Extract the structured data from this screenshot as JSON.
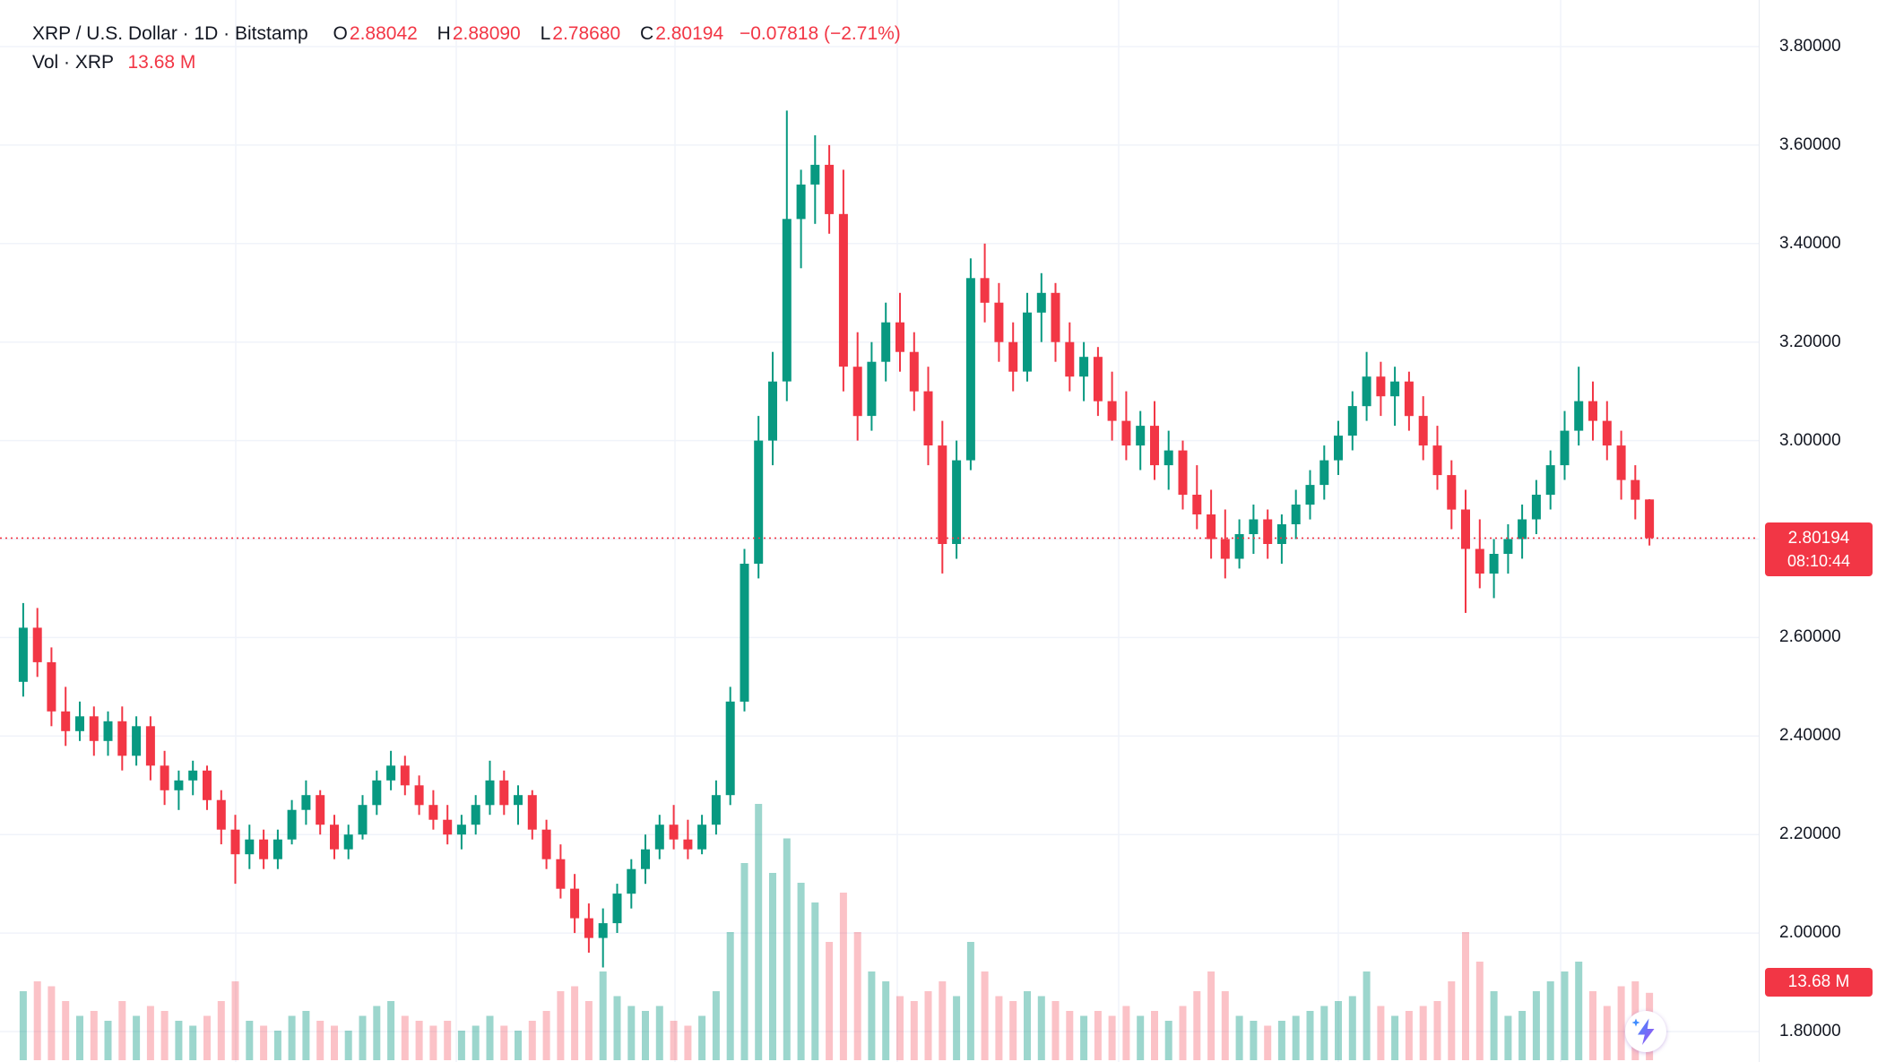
{
  "header": {
    "title": "XRP / U.S. Dollar · 1D · Bitstamp",
    "ohlc": {
      "o_label": "O",
      "o": "2.88042",
      "h_label": "H",
      "h": "2.88090",
      "l_label": "L",
      "l": "2.78680",
      "c_label": "C",
      "c": "2.80194",
      "change": "−0.07818 (−2.71%)"
    },
    "volume": {
      "label": "Vol · XRP",
      "value": "13.68 M"
    }
  },
  "price_axis": {
    "ticks": [
      {
        "label": "3.80000",
        "price": 3.8
      },
      {
        "label": "3.60000",
        "price": 3.6
      },
      {
        "label": "3.40000",
        "price": 3.4
      },
      {
        "label": "3.20000",
        "price": 3.2
      },
      {
        "label": "3.00000",
        "price": 3.0
      },
      {
        "label": "2.60000",
        "price": 2.6
      },
      {
        "label": "2.40000",
        "price": 2.4
      },
      {
        "label": "2.20000",
        "price": 2.2
      },
      {
        "label": "2.00000",
        "price": 2.0
      },
      {
        "label": "1.80000",
        "price": 1.8
      }
    ],
    "current": {
      "label": "2.80194",
      "countdown": "08:10:44"
    },
    "volume_label": "13.68 M"
  },
  "ai_button": {
    "icon": "lightning-bolt"
  },
  "chart_data": {
    "type": "candlestick_with_volume",
    "symbol": "XRP / U.S. Dollar",
    "interval": "1D",
    "exchange": "Bitstamp",
    "ohlc_current": {
      "open": 2.88042,
      "high": 2.8809,
      "low": 2.7868,
      "close": 2.80194,
      "change": -0.07818,
      "change_pct": -2.71
    },
    "current_price": 2.80194,
    "current_volume_m": 13.68,
    "volume_unit": "M",
    "ylim": [
      1.8,
      3.8
    ],
    "gridline_prices": [
      3.8,
      3.6,
      3.4,
      3.2,
      3.0,
      2.8,
      2.6,
      2.4,
      2.2,
      2.0,
      1.8
    ],
    "up_color": "#089981",
    "down_color": "#f23645",
    "vol_up_color": "rgba(8,153,129,0.40)",
    "vol_down_color": "rgba(242,54,69,0.30)",
    "candles_format": [
      "open",
      "high",
      "low",
      "close",
      "volume_millions"
    ],
    "candles": [
      [
        2.51,
        2.67,
        2.48,
        2.62,
        14
      ],
      [
        2.62,
        2.66,
        2.52,
        2.55,
        16
      ],
      [
        2.55,
        2.58,
        2.42,
        2.45,
        15
      ],
      [
        2.45,
        2.5,
        2.38,
        2.41,
        12
      ],
      [
        2.41,
        2.47,
        2.39,
        2.44,
        9
      ],
      [
        2.44,
        2.46,
        2.36,
        2.39,
        10
      ],
      [
        2.39,
        2.45,
        2.36,
        2.43,
        8
      ],
      [
        2.43,
        2.46,
        2.33,
        2.36,
        12
      ],
      [
        2.36,
        2.44,
        2.34,
        2.42,
        9
      ],
      [
        2.42,
        2.44,
        2.31,
        2.34,
        11
      ],
      [
        2.34,
        2.37,
        2.26,
        2.29,
        10
      ],
      [
        2.29,
        2.33,
        2.25,
        2.31,
        8
      ],
      [
        2.31,
        2.35,
        2.28,
        2.33,
        7
      ],
      [
        2.33,
        2.34,
        2.25,
        2.27,
        9
      ],
      [
        2.27,
        2.29,
        2.18,
        2.21,
        12
      ],
      [
        2.21,
        2.24,
        2.1,
        2.16,
        16
      ],
      [
        2.16,
        2.22,
        2.13,
        2.19,
        8
      ],
      [
        2.19,
        2.21,
        2.13,
        2.15,
        7
      ],
      [
        2.15,
        2.21,
        2.13,
        2.19,
        6
      ],
      [
        2.19,
        2.27,
        2.18,
        2.25,
        9
      ],
      [
        2.25,
        2.31,
        2.22,
        2.28,
        10
      ],
      [
        2.28,
        2.29,
        2.2,
        2.22,
        8
      ],
      [
        2.22,
        2.24,
        2.15,
        2.17,
        7
      ],
      [
        2.17,
        2.22,
        2.15,
        2.2,
        6
      ],
      [
        2.2,
        2.28,
        2.19,
        2.26,
        9
      ],
      [
        2.26,
        2.33,
        2.24,
        2.31,
        11
      ],
      [
        2.31,
        2.37,
        2.29,
        2.34,
        12
      ],
      [
        2.34,
        2.36,
        2.28,
        2.3,
        9
      ],
      [
        2.3,
        2.32,
        2.24,
        2.26,
        8
      ],
      [
        2.26,
        2.29,
        2.21,
        2.23,
        7
      ],
      [
        2.23,
        2.26,
        2.18,
        2.2,
        8
      ],
      [
        2.2,
        2.24,
        2.17,
        2.22,
        6
      ],
      [
        2.22,
        2.28,
        2.2,
        2.26,
        7
      ],
      [
        2.26,
        2.35,
        2.24,
        2.31,
        9
      ],
      [
        2.31,
        2.33,
        2.24,
        2.26,
        7
      ],
      [
        2.26,
        2.3,
        2.22,
        2.28,
        6
      ],
      [
        2.28,
        2.29,
        2.19,
        2.21,
        8
      ],
      [
        2.21,
        2.23,
        2.13,
        2.15,
        10
      ],
      [
        2.15,
        2.18,
        2.07,
        2.09,
        14
      ],
      [
        2.09,
        2.12,
        2.0,
        2.03,
        15
      ],
      [
        2.03,
        2.06,
        1.96,
        1.99,
        12
      ],
      [
        1.99,
        2.05,
        1.93,
        2.02,
        18
      ],
      [
        2.02,
        2.1,
        2.0,
        2.08,
        13
      ],
      [
        2.08,
        2.15,
        2.05,
        2.13,
        11
      ],
      [
        2.13,
        2.2,
        2.1,
        2.17,
        10
      ],
      [
        2.17,
        2.24,
        2.15,
        2.22,
        11
      ],
      [
        2.22,
        2.26,
        2.17,
        2.19,
        8
      ],
      [
        2.19,
        2.23,
        2.15,
        2.17,
        7
      ],
      [
        2.17,
        2.24,
        2.16,
        2.22,
        9
      ],
      [
        2.22,
        2.31,
        2.2,
        2.28,
        14
      ],
      [
        2.28,
        2.5,
        2.26,
        2.47,
        26
      ],
      [
        2.47,
        2.78,
        2.45,
        2.75,
        40
      ],
      [
        2.75,
        3.05,
        2.72,
        3.0,
        52
      ],
      [
        3.0,
        3.18,
        2.95,
        3.12,
        38
      ],
      [
        3.12,
        3.67,
        3.08,
        3.45,
        45
      ],
      [
        3.45,
        3.55,
        3.35,
        3.52,
        36
      ],
      [
        3.52,
        3.62,
        3.44,
        3.56,
        32
      ],
      [
        3.56,
        3.6,
        3.42,
        3.46,
        24
      ],
      [
        3.46,
        3.55,
        3.1,
        3.15,
        34
      ],
      [
        3.15,
        3.22,
        3.0,
        3.05,
        26
      ],
      [
        3.05,
        3.2,
        3.02,
        3.16,
        18
      ],
      [
        3.16,
        3.28,
        3.12,
        3.24,
        16
      ],
      [
        3.24,
        3.3,
        3.14,
        3.18,
        13
      ],
      [
        3.18,
        3.22,
        3.06,
        3.1,
        12
      ],
      [
        3.1,
        3.15,
        2.95,
        2.99,
        14
      ],
      [
        2.99,
        3.04,
        2.73,
        2.79,
        16
      ],
      [
        2.79,
        3.0,
        2.76,
        2.96,
        13
      ],
      [
        2.96,
        3.37,
        2.94,
        3.33,
        24
      ],
      [
        3.33,
        3.4,
        3.24,
        3.28,
        18
      ],
      [
        3.28,
        3.32,
        3.16,
        3.2,
        13
      ],
      [
        3.2,
        3.24,
        3.1,
        3.14,
        12
      ],
      [
        3.14,
        3.3,
        3.12,
        3.26,
        14
      ],
      [
        3.26,
        3.34,
        3.2,
        3.3,
        13
      ],
      [
        3.3,
        3.32,
        3.16,
        3.2,
        12
      ],
      [
        3.2,
        3.24,
        3.1,
        3.13,
        10
      ],
      [
        3.13,
        3.2,
        3.08,
        3.17,
        9
      ],
      [
        3.17,
        3.19,
        3.05,
        3.08,
        10
      ],
      [
        3.08,
        3.14,
        3.0,
        3.04,
        9
      ],
      [
        3.04,
        3.1,
        2.96,
        2.99,
        11
      ],
      [
        2.99,
        3.06,
        2.94,
        3.03,
        9
      ],
      [
        3.03,
        3.08,
        2.92,
        2.95,
        10
      ],
      [
        2.95,
        3.02,
        2.9,
        2.98,
        8
      ],
      [
        2.98,
        3.0,
        2.86,
        2.89,
        11
      ],
      [
        2.89,
        2.95,
        2.82,
        2.85,
        14
      ],
      [
        2.85,
        2.9,
        2.76,
        2.8,
        18
      ],
      [
        2.8,
        2.86,
        2.72,
        2.76,
        14
      ],
      [
        2.76,
        2.84,
        2.74,
        2.81,
        9
      ],
      [
        2.81,
        2.87,
        2.77,
        2.84,
        8
      ],
      [
        2.84,
        2.86,
        2.76,
        2.79,
        7
      ],
      [
        2.79,
        2.85,
        2.75,
        2.83,
        8
      ],
      [
        2.83,
        2.9,
        2.8,
        2.87,
        9
      ],
      [
        2.87,
        2.94,
        2.84,
        2.91,
        10
      ],
      [
        2.91,
        2.99,
        2.88,
        2.96,
        11
      ],
      [
        2.96,
        3.04,
        2.93,
        3.01,
        12
      ],
      [
        3.01,
        3.1,
        2.98,
        3.07,
        13
      ],
      [
        3.07,
        3.18,
        3.04,
        3.13,
        18
      ],
      [
        3.13,
        3.16,
        3.05,
        3.09,
        11
      ],
      [
        3.09,
        3.15,
        3.03,
        3.12,
        9
      ],
      [
        3.12,
        3.14,
        3.02,
        3.05,
        10
      ],
      [
        3.05,
        3.09,
        2.96,
        2.99,
        11
      ],
      [
        2.99,
        3.03,
        2.9,
        2.93,
        12
      ],
      [
        2.93,
        2.96,
        2.82,
        2.86,
        16
      ],
      [
        2.86,
        2.9,
        2.65,
        2.78,
        26
      ],
      [
        2.78,
        2.84,
        2.7,
        2.73,
        20
      ],
      [
        2.73,
        2.8,
        2.68,
        2.77,
        14
      ],
      [
        2.77,
        2.83,
        2.73,
        2.8,
        9
      ],
      [
        2.8,
        2.87,
        2.76,
        2.84,
        10
      ],
      [
        2.84,
        2.92,
        2.81,
        2.89,
        14
      ],
      [
        2.89,
        2.98,
        2.86,
        2.95,
        16
      ],
      [
        2.95,
        3.06,
        2.92,
        3.02,
        18
      ],
      [
        3.02,
        3.15,
        2.99,
        3.08,
        20
      ],
      [
        3.08,
        3.12,
        3.0,
        3.04,
        14
      ],
      [
        3.04,
        3.08,
        2.96,
        2.99,
        11
      ],
      [
        2.99,
        3.02,
        2.88,
        2.92,
        15
      ],
      [
        2.92,
        2.95,
        2.84,
        2.88,
        16
      ],
      [
        2.88042,
        2.8809,
        2.7868,
        2.80194,
        13.68
      ]
    ]
  }
}
